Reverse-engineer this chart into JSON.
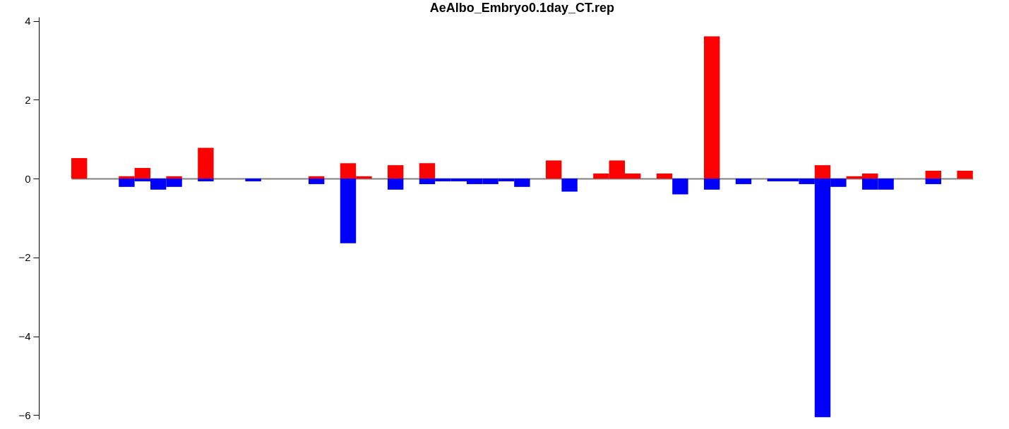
{
  "chart_data": {
    "type": "bar",
    "title": "AeAlbo_Embryo0.1day_CT.rep",
    "stacked": true,
    "legend": false,
    "grid": false,
    "tick_labels": "y",
    "categories": [
      null,
      null,
      null,
      null,
      null,
      null,
      null,
      null,
      null,
      null,
      null,
      null,
      null,
      null,
      null,
      null,
      null,
      null,
      null,
      null,
      null,
      null,
      null,
      null,
      null,
      null,
      null,
      null,
      null,
      null,
      null,
      null,
      null,
      null,
      null,
      null,
      null,
      null,
      null,
      null,
      null,
      null,
      null,
      null,
      null,
      null,
      null,
      null,
      null,
      null,
      null,
      null,
      null,
      null,
      null,
      null,
      null
    ],
    "series": [
      {
        "color": "#ff0000",
        "values": [
          0.52,
          0,
          0,
          0.06,
          0.27,
          0,
          0.06,
          0,
          0.78,
          0,
          0,
          0,
          0,
          0,
          0,
          0.06,
          0,
          0.39,
          0.06,
          0,
          0.34,
          0,
          0.39,
          0,
          0,
          0,
          0,
          0,
          0,
          0,
          0.46,
          0,
          0,
          0.13,
          0.46,
          0.13,
          0,
          0.13,
          0,
          0,
          3.61,
          0,
          0,
          0,
          0,
          0,
          0,
          0.34,
          0,
          0.06,
          0.13,
          0,
          0,
          0,
          0.2,
          0,
          0.2
        ]
      },
      {
        "color": "#0000ff",
        "values": [
          0,
          0,
          0,
          -0.21,
          -0.07,
          -0.28,
          -0.21,
          0,
          -0.07,
          0,
          0,
          -0.07,
          0,
          0,
          0,
          -0.14,
          0,
          -1.64,
          0,
          0,
          -0.28,
          0,
          -0.14,
          -0.07,
          -0.07,
          -0.14,
          -0.14,
          -0.07,
          -0.21,
          0,
          0,
          -0.33,
          0,
          0,
          0,
          0,
          0,
          0,
          -0.4,
          0,
          -0.28,
          0,
          -0.14,
          0,
          -0.07,
          -0.07,
          -0.14,
          -6.05,
          -0.21,
          0,
          -0.28,
          -0.28,
          0,
          0,
          -0.14,
          0,
          0
        ]
      }
    ],
    "ylim": [
      -6.1,
      4.1
    ],
    "yticks": [
      -6,
      -4,
      -2,
      0,
      2,
      4
    ],
    "ref_lines": [
      {
        "axis": "y",
        "value": 0,
        "color": "#808080"
      }
    ]
  }
}
